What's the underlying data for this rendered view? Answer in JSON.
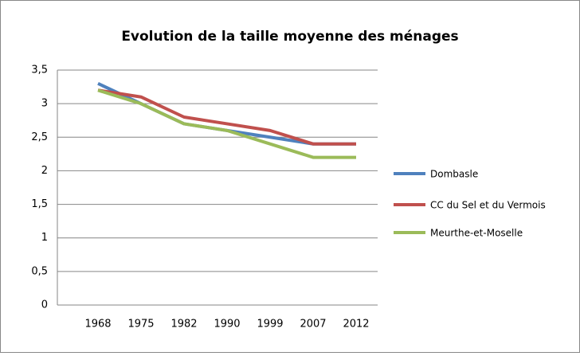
{
  "chart_data": {
    "type": "line",
    "title": "Evolution de la taille moyenne des ménages",
    "categories": [
      "1968",
      "1975",
      "1982",
      "1990",
      "1999",
      "2007",
      "2012"
    ],
    "series": [
      {
        "name": "Dombasle",
        "color": "#4f81bd",
        "values": [
          3.3,
          3.0,
          2.7,
          2.6,
          2.5,
          2.4,
          2.4
        ]
      },
      {
        "name": "CC du Sel et du Vermois",
        "color": "#c0504d",
        "values": [
          3.2,
          3.1,
          2.8,
          2.7,
          2.6,
          2.4,
          2.4
        ]
      },
      {
        "name": "Meurthe-et-Moselle",
        "color": "#9bbb59",
        "values": [
          3.2,
          3.0,
          2.7,
          2.6,
          2.4,
          2.2,
          2.2
        ]
      }
    ],
    "ylim": [
      0,
      3.5
    ],
    "yticks": [
      0,
      {
        "value": 0.5,
        "label": "0,5"
      },
      1,
      {
        "value": 1.5,
        "label": "1,5"
      },
      2,
      {
        "value": 2.5,
        "label": "2,5"
      },
      3,
      {
        "value": 3.5,
        "label": "3,5"
      }
    ],
    "grid": true,
    "legend": "right"
  }
}
